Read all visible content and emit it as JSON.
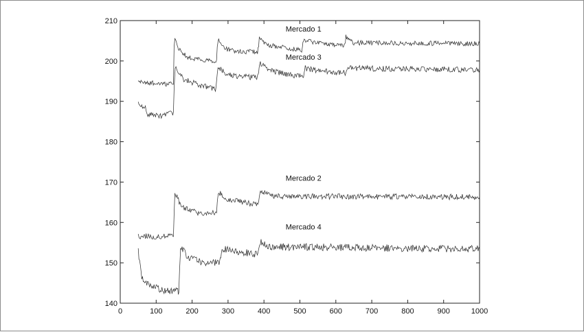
{
  "chart_data": {
    "type": "line",
    "title": "",
    "xlabel": "",
    "ylabel": "",
    "xlim": [
      0,
      1000
    ],
    "ylim": [
      140,
      210
    ],
    "x_ticks": [
      "0",
      "100",
      "200",
      "300",
      "400",
      "500",
      "600",
      "700",
      "800",
      "900",
      "1000"
    ],
    "y_ticks": [
      "140",
      "150",
      "160",
      "170",
      "180",
      "190",
      "200",
      "210"
    ],
    "grid": false,
    "line_color": "#333333",
    "series": [
      {
        "name": "Mercado 1",
        "noise": 0.6,
        "points": [
          [
            50,
            194.8
          ],
          [
            148,
            194.2
          ],
          [
            150,
            203.5
          ],
          [
            152,
            205.4
          ],
          [
            160,
            203.2
          ],
          [
            190,
            200.8
          ],
          [
            260,
            200.0
          ],
          [
            268,
            200.2
          ],
          [
            270,
            203.5
          ],
          [
            272,
            205.3
          ],
          [
            290,
            203.0
          ],
          [
            330,
            202.3
          ],
          [
            382,
            202.3
          ],
          [
            385,
            203.5
          ],
          [
            387,
            205.4
          ],
          [
            410,
            204.0
          ],
          [
            505,
            202.6
          ],
          [
            507,
            203.5
          ],
          [
            510,
            205.2
          ],
          [
            540,
            204.5
          ],
          [
            620,
            203.8
          ],
          [
            625,
            204.2
          ],
          [
            628,
            206.0
          ],
          [
            650,
            204.5
          ],
          [
            1000,
            204.3
          ]
        ]
      },
      {
        "name": "Mercado 3",
        "noise": 0.7,
        "points": [
          [
            50,
            189.4
          ],
          [
            70,
            188.7
          ],
          [
            75,
            186.9
          ],
          [
            110,
            186.3
          ],
          [
            148,
            187.3
          ],
          [
            150,
            193.0
          ],
          [
            153,
            198.8
          ],
          [
            175,
            195.5
          ],
          [
            220,
            194.0
          ],
          [
            265,
            193.0
          ],
          [
            268,
            195.0
          ],
          [
            272,
            198.6
          ],
          [
            300,
            196.5
          ],
          [
            382,
            195.8
          ],
          [
            385,
            197.0
          ],
          [
            388,
            199.6
          ],
          [
            420,
            197.5
          ],
          [
            510,
            196.0
          ],
          [
            512,
            197.5
          ],
          [
            515,
            198.2
          ],
          [
            540,
            197.8
          ],
          [
            630,
            197.0
          ],
          [
            634,
            198.2
          ],
          [
            1000,
            197.8
          ]
        ]
      },
      {
        "name": "Mercado 2",
        "noise": 0.7,
        "points": [
          [
            50,
            156.6
          ],
          [
            148,
            156.5
          ],
          [
            150,
            162.0
          ],
          [
            152,
            167.4
          ],
          [
            170,
            164.0
          ],
          [
            220,
            162.2
          ],
          [
            268,
            162.4
          ],
          [
            270,
            165.0
          ],
          [
            273,
            167.5
          ],
          [
            300,
            165.6
          ],
          [
            385,
            164.4
          ],
          [
            387,
            166.0
          ],
          [
            390,
            167.6
          ],
          [
            430,
            166.5
          ],
          [
            1000,
            166.3
          ]
        ]
      },
      {
        "name": "Mercado 4",
        "noise": 0.9,
        "points": [
          [
            50,
            152.8
          ],
          [
            60,
            146.0
          ],
          [
            80,
            144.5
          ],
          [
            120,
            143.0
          ],
          [
            160,
            143.0
          ],
          [
            163,
            142.6
          ],
          [
            165,
            148.0
          ],
          [
            168,
            153.6
          ],
          [
            190,
            151.5
          ],
          [
            230,
            150.0
          ],
          [
            275,
            150.0
          ],
          [
            280,
            152.0
          ],
          [
            283,
            153.4
          ],
          [
            320,
            153.0
          ],
          [
            380,
            152.0
          ],
          [
            385,
            153.0
          ],
          [
            388,
            155.2
          ],
          [
            420,
            154.0
          ],
          [
            1000,
            153.4
          ]
        ]
      }
    ],
    "annotations": [
      {
        "text": "Mercado 1",
        "x": 510,
        "y": 207.3
      },
      {
        "text": "Mercado 3",
        "x": 510,
        "y": 200.3
      },
      {
        "text": "Mercado 2",
        "x": 510,
        "y": 170.3
      },
      {
        "text": "Mercado 4",
        "x": 510,
        "y": 158.3
      }
    ]
  }
}
